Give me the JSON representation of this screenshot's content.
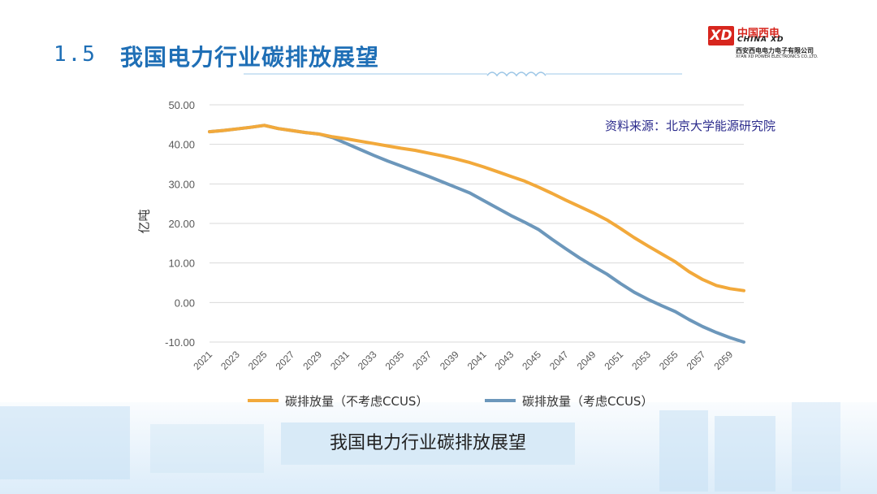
{
  "header": {
    "number": "1.5",
    "title": "我国电力行业碳排放展望"
  },
  "logo": {
    "mark": "XD",
    "name_cn": "中国西电",
    "name_en": "CHINA XD",
    "company_cn": "西安西电电力电子有限公司",
    "company_en": "XI'AN XD POWER ELECTRONICS CO.,LTD."
  },
  "source_note": "资料来源：北京大学能源研究院",
  "caption": "我国电力行业碳排放展望",
  "colors": {
    "title": "#1f6fb6",
    "series_without_ccus": "#f2a93b",
    "series_with_ccus": "#6c97bb",
    "grid": "#d9d9d9"
  },
  "chart_data": {
    "type": "line",
    "title": "",
    "xlabel": "",
    "ylabel": "亿吨",
    "ylim": [
      -10,
      50
    ],
    "yticks": [
      "50.00",
      "40.00",
      "30.00",
      "20.00",
      "10.00",
      "0.00",
      "-10.00"
    ],
    "xticks": [
      "2021",
      "2023",
      "2025",
      "2027",
      "2029",
      "2031",
      "2033",
      "2035",
      "2037",
      "2039",
      "2041",
      "2043",
      "2045",
      "2047",
      "2049",
      "2051",
      "2053",
      "2055",
      "2057",
      "2059"
    ],
    "x": [
      2021,
      2022,
      2023,
      2024,
      2025,
      2026,
      2027,
      2028,
      2029,
      2030,
      2031,
      2032,
      2033,
      2034,
      2035,
      2036,
      2037,
      2038,
      2039,
      2040,
      2041,
      2042,
      2043,
      2044,
      2045,
      2046,
      2047,
      2048,
      2049,
      2050,
      2051,
      2052,
      2053,
      2054,
      2055,
      2056,
      2057,
      2058,
      2059,
      2060
    ],
    "series": [
      {
        "name": "碳排放量（不考虑CCUS）",
        "values": [
          43.2,
          43.5,
          43.9,
          44.3,
          44.8,
          44.0,
          43.5,
          43.0,
          42.6,
          41.9,
          41.4,
          40.8,
          40.2,
          39.6,
          39.0,
          38.5,
          37.8,
          37.1,
          36.3,
          35.4,
          34.3,
          33.1,
          31.9,
          30.7,
          29.2,
          27.6,
          25.9,
          24.3,
          22.7,
          20.9,
          18.7,
          16.4,
          14.3,
          12.3,
          10.3,
          7.8,
          5.8,
          4.3,
          3.5,
          3.0
        ]
      },
      {
        "name": "碳排放量（考虑CCUS）",
        "values": [
          43.2,
          43.5,
          43.9,
          44.3,
          44.8,
          44.0,
          43.5,
          43.0,
          42.6,
          41.7,
          40.2,
          38.7,
          37.2,
          35.8,
          34.5,
          33.2,
          31.9,
          30.5,
          29.1,
          27.7,
          25.8,
          23.9,
          22.0,
          20.3,
          18.5,
          16.0,
          13.6,
          11.3,
          9.2,
          7.2,
          4.8,
          2.6,
          0.8,
          -0.8,
          -2.3,
          -4.3,
          -6.1,
          -7.6,
          -8.9,
          -10.0
        ]
      }
    ],
    "legend_position": "bottom",
    "grid": true
  }
}
